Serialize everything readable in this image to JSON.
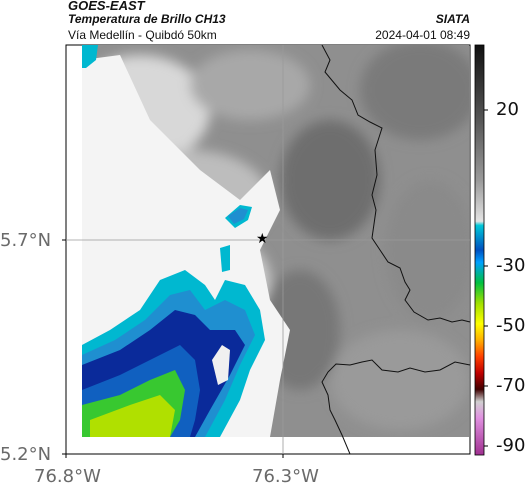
{
  "header": {
    "satellite": "GOES-EAST",
    "product": "Temperatura de Brillo CH13",
    "region": "Vía Medellín - Quibdó 50km",
    "org": "SIATA",
    "datetime": "2024-04-01 08:49"
  },
  "axes": {
    "lat_ticks": [
      "5.7°N",
      "5.2°N"
    ],
    "lon_ticks": [
      "76.8°W",
      "76.3°W"
    ]
  },
  "colorbar": {
    "ticks": [
      "20",
      "-30",
      "-50",
      "-70",
      "-90"
    ]
  },
  "marker": {
    "symbol": "★",
    "label": ""
  },
  "colors": {
    "cold_cloud_blue": "#0a2a9a",
    "mid_blue": "#1f8fd0",
    "cyan": "#00b8d0",
    "green": "#38c830",
    "yellow_green": "#b0e000"
  }
}
